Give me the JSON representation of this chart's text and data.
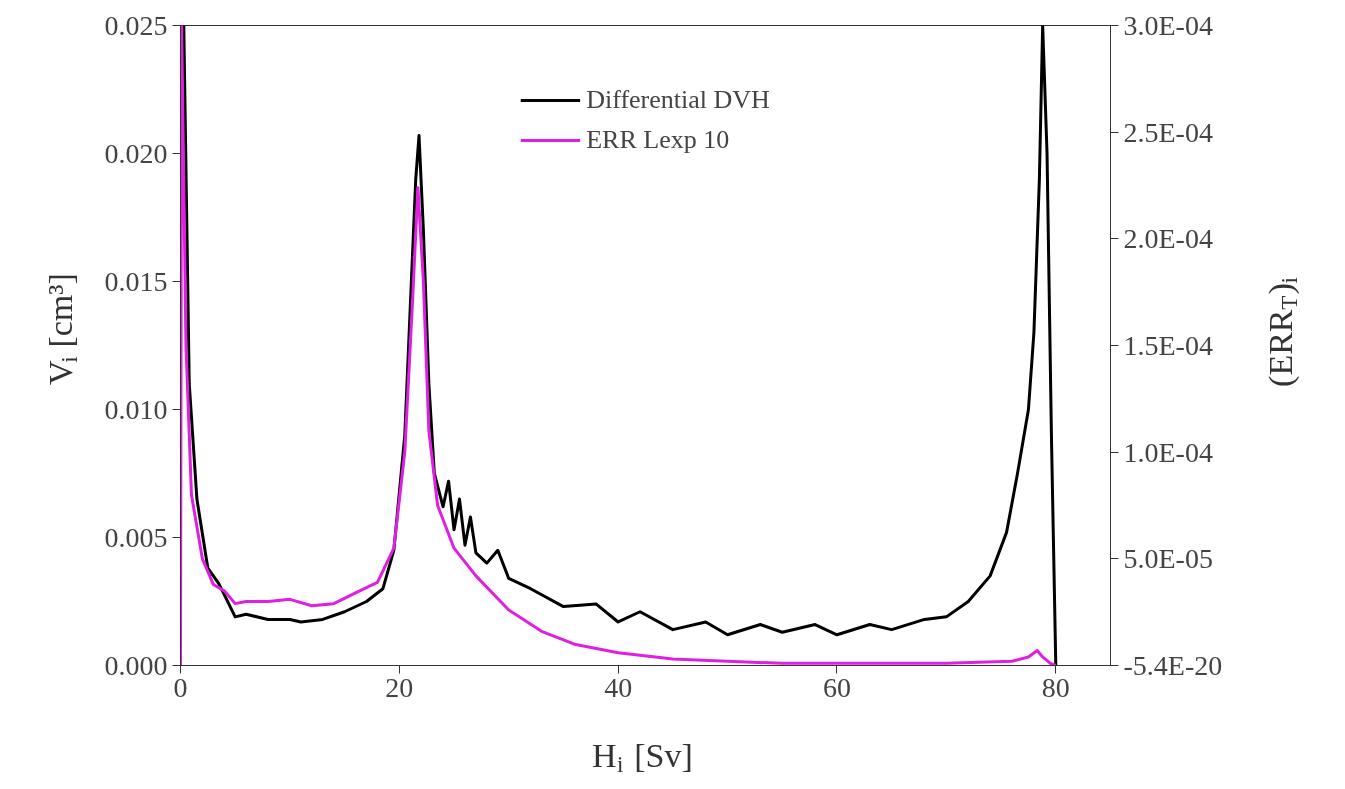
{
  "chart_data": {
    "type": "line",
    "xlabel": "H$_{i}$ [Sv]",
    "ylabel": "V$_{i}$ [cm³]",
    "y2label": "(ERR$_{T}$)$_{i}$",
    "xlim": [
      0,
      85
    ],
    "xticks": [
      0,
      20,
      40,
      60,
      80
    ],
    "ylim": [
      0,
      0.025
    ],
    "yticks": [
      {
        "value": 0,
        "label": "0.000"
      },
      {
        "value": 0.005,
        "label": "0.005"
      },
      {
        "value": 0.01,
        "label": "0.010"
      },
      {
        "value": 0.015,
        "label": "0.015"
      },
      {
        "value": 0.02,
        "label": "0.020"
      },
      {
        "value": 0.025,
        "label": "0.025"
      }
    ],
    "y2lim": [
      -5.4e-20,
      0.0003
    ],
    "y2ticks": [
      {
        "value": -5.4e-20,
        "label": "-5.4E-20"
      },
      {
        "value": 5e-05,
        "label": "5.0E-05"
      },
      {
        "value": 0.0001,
        "label": "1.0E-04"
      },
      {
        "value": 0.00015,
        "label": "1.5E-04"
      },
      {
        "value": 0.0002,
        "label": "2.0E-04"
      },
      {
        "value": 0.00025,
        "label": "2.5E-04"
      },
      {
        "value": 0.0003,
        "label": "3.0E-04"
      }
    ],
    "grid": false,
    "legend": "top",
    "marker": "none",
    "line_style": "solid",
    "series": [
      {
        "name": "Differential DVH",
        "color": "#000000",
        "x": [
          0,
          0.3,
          0.8,
          1.5,
          2.5,
          3.5,
          5,
          6,
          8,
          10,
          11,
          13,
          15,
          17,
          18.5,
          19.5,
          20.5,
          21,
          21.5,
          21.8,
          22.2,
          22.7,
          23.2,
          24,
          24.5,
          25,
          25.5,
          26,
          26.5,
          27,
          28,
          29,
          30,
          32,
          35,
          38,
          40,
          42,
          45,
          48,
          50,
          53,
          55,
          58,
          60,
          63,
          65,
          68,
          70,
          72,
          74,
          75.5,
          76.5,
          77.5,
          78,
          78.5,
          78.8,
          79.2,
          79.6,
          80
        ],
        "values": [
          0.025,
          0.025,
          0.011,
          0.0065,
          0.0038,
          0.0032,
          0.0019,
          0.002,
          0.0018,
          0.0018,
          0.0017,
          0.0018,
          0.0021,
          0.0025,
          0.003,
          0.0045,
          0.009,
          0.014,
          0.019,
          0.0207,
          0.017,
          0.011,
          0.0075,
          0.0062,
          0.0072,
          0.0053,
          0.0065,
          0.0047,
          0.0058,
          0.0044,
          0.004,
          0.0045,
          0.0034,
          0.003,
          0.0023,
          0.0024,
          0.0017,
          0.0021,
          0.0014,
          0.0017,
          0.0012,
          0.0016,
          0.0013,
          0.0016,
          0.0012,
          0.0016,
          0.0014,
          0.0018,
          0.0019,
          0.0025,
          0.0035,
          0.0052,
          0.0075,
          0.01,
          0.013,
          0.019,
          0.025,
          0.02,
          0.009,
          0.0
        ]
      },
      {
        "name": "ERR Lexp 10",
        "color": "#e020e0",
        "axis": "y2",
        "x": [
          0,
          0.1,
          0.5,
          1,
          2,
          3,
          4,
          5,
          6,
          8,
          10,
          12,
          14,
          16,
          18,
          19.5,
          20.5,
          21.2,
          21.7,
          22.2,
          22.7,
          23.5,
          25,
          27,
          30,
          33,
          36,
          40,
          45,
          50,
          55,
          60,
          70,
          76,
          77.5,
          78.3,
          78.8,
          79.5,
          80
        ],
        "values": [
          0,
          0.0003,
          0.00015,
          8e-05,
          5e-05,
          3.8e-05,
          3.5e-05,
          2.9e-05,
          3e-05,
          3e-05,
          3.1e-05,
          2.8e-05,
          2.9e-05,
          3.4e-05,
          3.9e-05,
          5.5e-05,
          0.0001,
          0.00017,
          0.000224,
          0.00018,
          0.00011,
          7.5e-05,
          5.5e-05,
          4.2e-05,
          2.6e-05,
          1.6e-05,
          1e-05,
          6e-06,
          3e-06,
          2e-06,
          1e-06,
          1e-06,
          1e-06,
          2e-06,
          4e-06,
          7e-06,
          4e-06,
          1e-06,
          0
        ]
      }
    ]
  }
}
